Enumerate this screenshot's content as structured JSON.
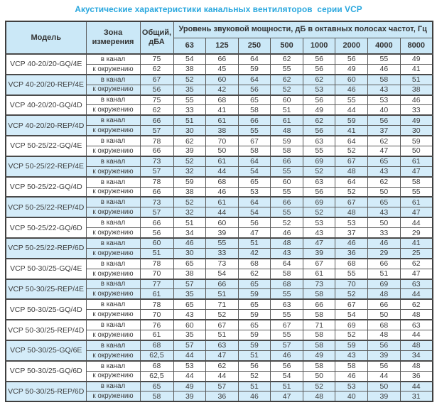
{
  "title": "Акустические характеристики канальных вентиляторов  серии VCP",
  "colors": {
    "title_color": "#29a7de",
    "header_bg": "#cbe8f7",
    "row_highlight": "#d4ecf9",
    "text_color": "#3c3c3c"
  },
  "table": {
    "headers": {
      "model": "Модель",
      "zone": "Зона измерения",
      "total": "Общий, дБА",
      "octave_group": "Уровень звуковой мощности, дБ в октавных полосах частот, Гц",
      "frequencies": [
        "63",
        "125",
        "250",
        "500",
        "1000",
        "2000",
        "4000",
        "8000"
      ]
    },
    "zone_labels": {
      "duct": "в канал",
      "ambient": "к окружению"
    },
    "rows": [
      {
        "model": "VCP 40-20/20-GQ/4E",
        "shaded": false,
        "duct": {
          "total": "75",
          "levels": [
            "54",
            "66",
            "64",
            "62",
            "56",
            "56",
            "55",
            "49"
          ]
        },
        "ambient": {
          "total": "62",
          "levels": [
            "38",
            "45",
            "59",
            "55",
            "56",
            "49",
            "46",
            "41"
          ]
        }
      },
      {
        "model": "VCP 40-20/20-REP/4E",
        "shaded": true,
        "duct": {
          "total": "67",
          "levels": [
            "52",
            "60",
            "64",
            "62",
            "62",
            "60",
            "58",
            "51"
          ]
        },
        "ambient": {
          "total": "56",
          "levels": [
            "35",
            "42",
            "56",
            "52",
            "53",
            "46",
            "43",
            "38"
          ]
        }
      },
      {
        "model": "VCP 40-20/20-GQ/4D",
        "shaded": false,
        "duct": {
          "total": "75",
          "levels": [
            "55",
            "68",
            "65",
            "60",
            "56",
            "55",
            "53",
            "46"
          ]
        },
        "ambient": {
          "total": "62",
          "levels": [
            "33",
            "41",
            "58",
            "51",
            "49",
            "44",
            "40",
            "33"
          ]
        }
      },
      {
        "model": "VCP 40-20/20-REP/4D",
        "shaded": true,
        "duct": {
          "total": "66",
          "levels": [
            "51",
            "61",
            "66",
            "61",
            "62",
            "59",
            "56",
            "49"
          ]
        },
        "ambient": {
          "total": "57",
          "levels": [
            "30",
            "38",
            "55",
            "48",
            "56",
            "41",
            "37",
            "30"
          ]
        }
      },
      {
        "model": "VCP 50-25/22-GQ/4E",
        "shaded": false,
        "duct": {
          "total": "78",
          "levels": [
            "62",
            "70",
            "67",
            "59",
            "63",
            "64",
            "62",
            "59"
          ]
        },
        "ambient": {
          "total": "66",
          "levels": [
            "39",
            "50",
            "58",
            "58",
            "55",
            "52",
            "47",
            "50"
          ]
        }
      },
      {
        "model": "VCP 50-25/22-REP/4E",
        "shaded": true,
        "duct": {
          "total": "73",
          "levels": [
            "52",
            "61",
            "64",
            "66",
            "69",
            "67",
            "65",
            "61"
          ]
        },
        "ambient": {
          "total": "57",
          "levels": [
            "32",
            "44",
            "54",
            "55",
            "52",
            "48",
            "43",
            "47"
          ]
        }
      },
      {
        "model": "VCP 50-25/22-GQ/4D",
        "shaded": false,
        "duct": {
          "total": "78",
          "levels": [
            "59",
            "68",
            "65",
            "60",
            "63",
            "64",
            "62",
            "58"
          ]
        },
        "ambient": {
          "total": "66",
          "levels": [
            "38",
            "46",
            "53",
            "55",
            "56",
            "52",
            "50",
            "55"
          ]
        }
      },
      {
        "model": "VCP 50-25/22-REP/4D",
        "shaded": true,
        "duct": {
          "total": "73",
          "levels": [
            "52",
            "61",
            "64",
            "66",
            "69",
            "67",
            "65",
            "61"
          ]
        },
        "ambient": {
          "total": "57",
          "levels": [
            "32",
            "44",
            "54",
            "55",
            "52",
            "48",
            "43",
            "47"
          ]
        }
      },
      {
        "model": "VCP 50-25/22-GQ/6D",
        "shaded": false,
        "duct": {
          "total": "66",
          "levels": [
            "51",
            "60",
            "56",
            "52",
            "53",
            "53",
            "50",
            "44"
          ]
        },
        "ambient": {
          "total": "56",
          "levels": [
            "34",
            "39",
            "47",
            "46",
            "43",
            "37",
            "33",
            "29"
          ]
        }
      },
      {
        "model": "VCP 50-25/22-REP/6D",
        "shaded": true,
        "duct": {
          "total": "60",
          "levels": [
            "46",
            "55",
            "51",
            "48",
            "47",
            "46",
            "46",
            "41"
          ]
        },
        "ambient": {
          "total": "51",
          "levels": [
            "30",
            "33",
            "42",
            "43",
            "39",
            "36",
            "29",
            "25"
          ]
        }
      },
      {
        "model": "VCP 50-30/25-GQ/4E",
        "shaded": false,
        "duct": {
          "total": "78",
          "levels": [
            "65",
            "73",
            "68",
            "64",
            "67",
            "68",
            "66",
            "62"
          ]
        },
        "ambient": {
          "total": "70",
          "levels": [
            "38",
            "54",
            "62",
            "58",
            "61",
            "55",
            "51",
            "47"
          ]
        }
      },
      {
        "model": "VCP 50-30/25-REP/4E",
        "shaded": true,
        "duct": {
          "total": "77",
          "levels": [
            "57",
            "66",
            "65",
            "68",
            "73",
            "70",
            "69",
            "63"
          ]
        },
        "ambient": {
          "total": "61",
          "levels": [
            "35",
            "51",
            "59",
            "55",
            "58",
            "52",
            "48",
            "44"
          ]
        }
      },
      {
        "model": "VCP 50-30/25-GQ/4D",
        "shaded": false,
        "duct": {
          "total": "78",
          "levels": [
            "65",
            "71",
            "65",
            "63",
            "66",
            "67",
            "66",
            "62"
          ]
        },
        "ambient": {
          "total": "70",
          "levels": [
            "43",
            "52",
            "59",
            "55",
            "58",
            "54",
            "50",
            "48"
          ]
        }
      },
      {
        "model": "VCP 50-30/25-REP/4D",
        "shaded": false,
        "duct": {
          "total": "76",
          "levels": [
            "60",
            "67",
            "65",
            "67",
            "71",
            "69",
            "68",
            "63"
          ]
        },
        "ambient": {
          "total": "61",
          "levels": [
            "35",
            "51",
            "59",
            "55",
            "58",
            "52",
            "48",
            "44"
          ]
        }
      },
      {
        "model": "VCP 50-30/25-GQ/6E",
        "shaded": true,
        "duct": {
          "total": "68",
          "levels": [
            "57",
            "63",
            "59",
            "57",
            "58",
            "59",
            "56",
            "48"
          ]
        },
        "ambient": {
          "total": "62,5",
          "levels": [
            "44",
            "47",
            "51",
            "46",
            "49",
            "43",
            "39",
            "34"
          ]
        }
      },
      {
        "model": "VCP 50-30/25-GQ/6D",
        "shaded": false,
        "duct": {
          "total": "68",
          "levels": [
            "53",
            "62",
            "56",
            "56",
            "58",
            "58",
            "56",
            "48"
          ]
        },
        "ambient": {
          "total": "62,5",
          "levels": [
            "44",
            "44",
            "52",
            "54",
            "50",
            "46",
            "44",
            "36"
          ]
        }
      },
      {
        "model": "VCP 50-30/25-REP/6D",
        "shaded": true,
        "duct": {
          "total": "65",
          "levels": [
            "49",
            "57",
            "51",
            "51",
            "52",
            "53",
            "50",
            "44"
          ]
        },
        "ambient": {
          "total": "58",
          "levels": [
            "39",
            "36",
            "46",
            "47",
            "48",
            "40",
            "39",
            "31"
          ]
        }
      }
    ]
  }
}
